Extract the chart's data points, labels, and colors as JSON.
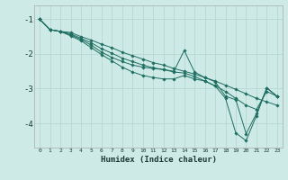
{
  "xlabel": "Humidex (Indice chaleur)",
  "background_color": "#ceeae6",
  "grid_color": "#b8d8d4",
  "line_color": "#1e6e62",
  "xlim": [
    -0.5,
    23.5
  ],
  "ylim": [
    -4.7,
    -0.6
  ],
  "yticks": [
    -1,
    -2,
    -3,
    -4
  ],
  "xticks": [
    0,
    1,
    2,
    3,
    4,
    5,
    6,
    7,
    8,
    9,
    10,
    11,
    12,
    13,
    14,
    15,
    16,
    17,
    18,
    19,
    20,
    21,
    22,
    23
  ],
  "lines": [
    {
      "x": [
        0,
        1,
        2,
        3,
        4,
        5,
        6,
        7,
        8,
        9,
        10,
        11,
        12,
        13,
        14,
        15,
        16,
        17,
        18,
        19,
        20,
        21,
        22,
        23
      ],
      "y": [
        -1.0,
        -1.3,
        -1.35,
        -1.38,
        -1.5,
        -1.6,
        -1.72,
        -1.82,
        -1.95,
        -2.05,
        -2.15,
        -2.25,
        -2.32,
        -2.42,
        -2.5,
        -2.58,
        -2.68,
        -2.78,
        -2.9,
        -3.02,
        -3.15,
        -3.28,
        -3.38,
        -3.48
      ]
    },
    {
      "x": [
        0,
        1,
        2,
        3,
        4,
        5,
        6,
        7,
        8,
        9,
        10,
        11,
        12,
        13,
        14,
        15,
        16,
        17,
        18,
        19,
        20,
        21,
        22,
        23
      ],
      "y": [
        -1.0,
        -1.3,
        -1.35,
        -1.42,
        -1.55,
        -1.68,
        -1.85,
        -1.98,
        -2.12,
        -2.22,
        -2.32,
        -2.4,
        -2.45,
        -2.52,
        -2.55,
        -2.65,
        -2.78,
        -2.92,
        -3.08,
        -3.28,
        -3.48,
        -3.6,
        -3.08,
        -3.22
      ]
    },
    {
      "x": [
        0,
        1,
        2,
        3,
        4,
        5,
        6,
        7,
        8,
        9,
        10,
        11,
        12,
        13,
        14,
        15,
        16,
        17,
        18,
        19,
        20,
        21,
        22,
        23
      ],
      "y": [
        -1.0,
        -1.3,
        -1.35,
        -1.45,
        -1.58,
        -1.75,
        -1.95,
        -2.1,
        -2.22,
        -2.32,
        -2.38,
        -2.42,
        -2.45,
        -2.5,
        -1.9,
        -2.52,
        -2.68,
        -2.8,
        -3.22,
        -3.32,
        -4.3,
        -3.72,
        -2.98,
        -3.22
      ]
    },
    {
      "x": [
        0,
        1,
        2,
        3,
        4,
        5,
        6,
        7,
        8,
        9,
        10,
        11,
        12,
        13,
        14,
        15,
        16,
        17,
        18,
        19,
        20,
        21,
        22,
        23
      ],
      "y": [
        -1.0,
        -1.3,
        -1.35,
        -1.48,
        -1.62,
        -1.82,
        -2.02,
        -2.2,
        -2.38,
        -2.52,
        -2.62,
        -2.68,
        -2.72,
        -2.72,
        -2.62,
        -2.72,
        -2.78,
        -2.92,
        -3.28,
        -4.28,
        -4.5,
        -3.78,
        -2.98,
        -3.22
      ]
    }
  ]
}
